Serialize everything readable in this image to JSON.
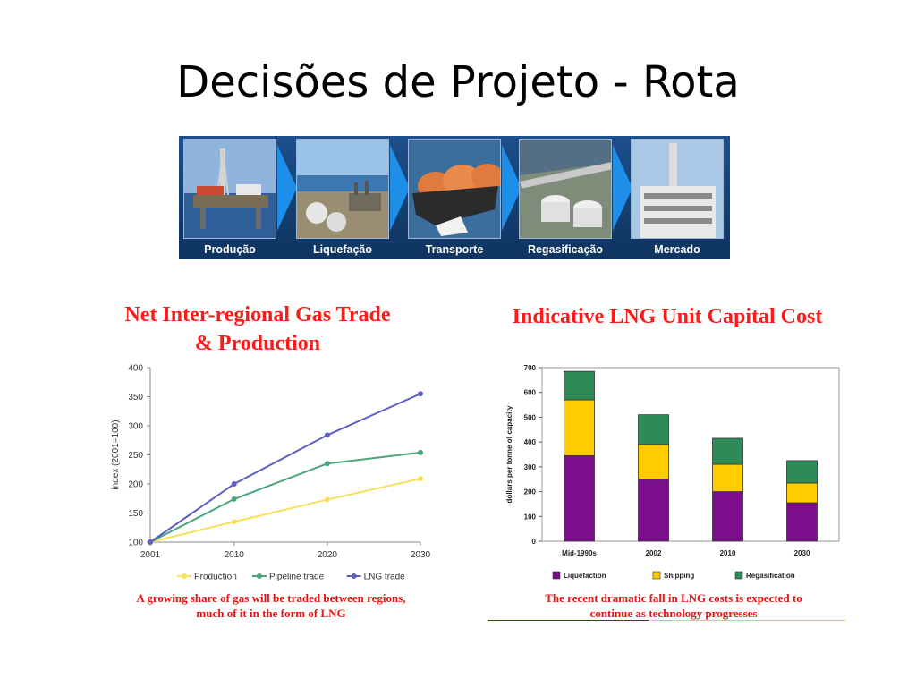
{
  "slide": {
    "title": "Decisões de Projeto - Rota"
  },
  "banner": {
    "stages": [
      {
        "label": "Produção",
        "icon": "offshore-rig-photo"
      },
      {
        "label": "Liquefação",
        "icon": "lng-plant-photo"
      },
      {
        "label": "Transporte",
        "icon": "lng-carrier-photo"
      },
      {
        "label": "Regasificação",
        "icon": "regas-terminal-photo"
      },
      {
        "label": "Mercado",
        "icon": "power-plant-photo"
      }
    ]
  },
  "left_chart": {
    "title_line1": "Net Inter-regional Gas Trade",
    "title_line2": "& Production",
    "caption_line1": "A growing share of gas will be traded between regions,",
    "caption_line2": "much of it in the form of LNG"
  },
  "right_chart": {
    "title": "Indicative LNG Unit Capital Cost",
    "caption_line1": "The recent dramatic fall in LNG costs is expected to",
    "caption_line2": "continue as technology progresses"
  },
  "chart_data": [
    {
      "type": "line",
      "title": "Net Inter-regional Gas Trade & Production",
      "xlabel": "",
      "ylabel": "index (2001=100)",
      "x": [
        2001,
        2010,
        2020,
        2030
      ],
      "ylim": [
        100,
        400
      ],
      "yticks": [
        100,
        150,
        200,
        250,
        300,
        350,
        400
      ],
      "grid": false,
      "legend": "bottom",
      "series": [
        {
          "name": "Production",
          "color": "#f7e15b",
          "values": [
            100,
            135,
            173,
            209
          ]
        },
        {
          "name": "Pipeline trade",
          "color": "#4aa57a",
          "values": [
            100,
            174,
            235,
            254
          ]
        },
        {
          "name": "LNG trade",
          "color": "#5c5fc0",
          "values": [
            100,
            200,
            284,
            355
          ]
        }
      ]
    },
    {
      "type": "bar",
      "stacked": true,
      "title": "Indicative LNG Unit Capital Cost",
      "xlabel": "",
      "ylabel": "dollars per tonne of capacity",
      "categories": [
        "Mid-1990s",
        "2002",
        "2010",
        "2030"
      ],
      "ylim": [
        0,
        700
      ],
      "yticks": [
        0,
        100,
        200,
        300,
        400,
        500,
        600,
        700
      ],
      "grid": false,
      "legend": "bottom",
      "series": [
        {
          "name": "Liquefaction",
          "color": "#7b0f8c",
          "values": [
            345,
            250,
            200,
            155
          ]
        },
        {
          "name": "Shipping",
          "color": "#ffcc00",
          "values": [
            225,
            140,
            110,
            80
          ]
        },
        {
          "name": "Regasification",
          "color": "#2e8b57",
          "values": [
            115,
            120,
            105,
            90
          ]
        }
      ]
    }
  ]
}
